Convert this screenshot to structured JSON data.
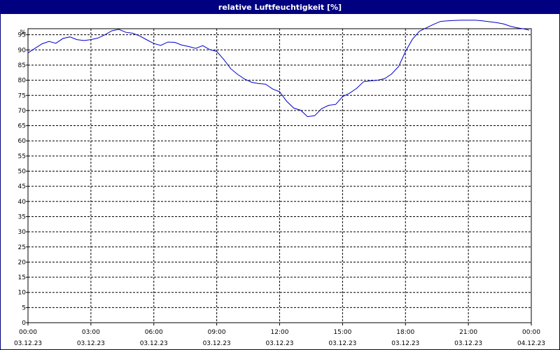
{
  "window": {
    "title": "relative Luftfeuchtigkeit [%]"
  },
  "colors": {
    "titlebar": "#000080",
    "line": "#0000cc",
    "grid": "#000000"
  },
  "chart_data": {
    "type": "line",
    "title": "relative Luftfeuchtigkeit [%]",
    "y_unit_label": "%",
    "ylim": [
      0,
      97
    ],
    "y_ticks": [
      0,
      5,
      10,
      15,
      20,
      25,
      30,
      35,
      40,
      45,
      50,
      55,
      60,
      65,
      70,
      75,
      80,
      85,
      90,
      95
    ],
    "x_ticks": [
      {
        "hour": 0,
        "time": "00:00",
        "date": "03.12.23"
      },
      {
        "hour": 3,
        "time": "03:00",
        "date": "03.12.23"
      },
      {
        "hour": 6,
        "time": "06:00",
        "date": "03.12.23"
      },
      {
        "hour": 9,
        "time": "09:00",
        "date": "03.12.23"
      },
      {
        "hour": 12,
        "time": "12:00",
        "date": "03.12.23"
      },
      {
        "hour": 15,
        "time": "15:00",
        "date": "03.12.23"
      },
      {
        "hour": 18,
        "time": "18:00",
        "date": "03.12.23"
      },
      {
        "hour": 21,
        "time": "21:00",
        "date": "03.12.23"
      },
      {
        "hour": 24,
        "time": "00:00",
        "date": "04.12.23"
      }
    ],
    "grid": true,
    "series": [
      {
        "x": [
          0,
          0.33,
          0.67,
          1.0,
          1.33,
          1.67,
          2.0,
          2.33,
          2.67,
          3.0,
          3.33,
          3.67,
          4.0,
          4.33,
          4.67,
          5.0,
          5.33,
          5.67,
          6.0,
          6.33,
          6.67,
          7.0,
          7.33,
          7.67,
          8.0,
          8.33,
          8.67,
          9.0,
          9.33,
          9.67,
          10.0,
          10.33,
          10.67,
          11.0,
          11.33,
          11.67,
          12.0,
          12.33,
          12.67,
          13.0,
          13.33,
          13.67,
          14.0,
          14.33,
          14.67,
          15.0,
          15.33,
          15.67,
          16.0,
          16.33,
          16.67,
          17.0,
          17.33,
          17.67,
          18.0,
          18.33,
          18.67,
          19.0,
          19.33,
          19.67,
          20.0,
          20.33,
          20.67,
          21.0,
          21.33,
          21.67,
          22.0,
          22.33,
          22.67,
          23.0,
          23.33,
          23.67,
          23.9
        ],
        "y": [
          89,
          90.5,
          92,
          92.8,
          92.2,
          93.8,
          94.3,
          93.4,
          93.1,
          93.4,
          93.9,
          95.0,
          96.3,
          96.8,
          95.8,
          95.5,
          94.6,
          93.3,
          92.1,
          91.5,
          92.6,
          92.5,
          91.6,
          91.1,
          90.5,
          91.4,
          90.1,
          89.5,
          86.9,
          83.8,
          81.9,
          80.4,
          79.3,
          78.9,
          78.7,
          77.1,
          76.2,
          73.1,
          70.8,
          70.1,
          68.0,
          68.3,
          70.6,
          71.7,
          72.0,
          74.6,
          75.7,
          77.3,
          79.5,
          79.8,
          80.0,
          80.5,
          82.0,
          84.5,
          89.5,
          93.5,
          96.2,
          97.3,
          98.4,
          99.4,
          99.6,
          99.7,
          99.8,
          99.8,
          99.8,
          99.6,
          99.3,
          99.0,
          98.6,
          97.8,
          97.3,
          96.9,
          96.5
        ]
      }
    ]
  }
}
